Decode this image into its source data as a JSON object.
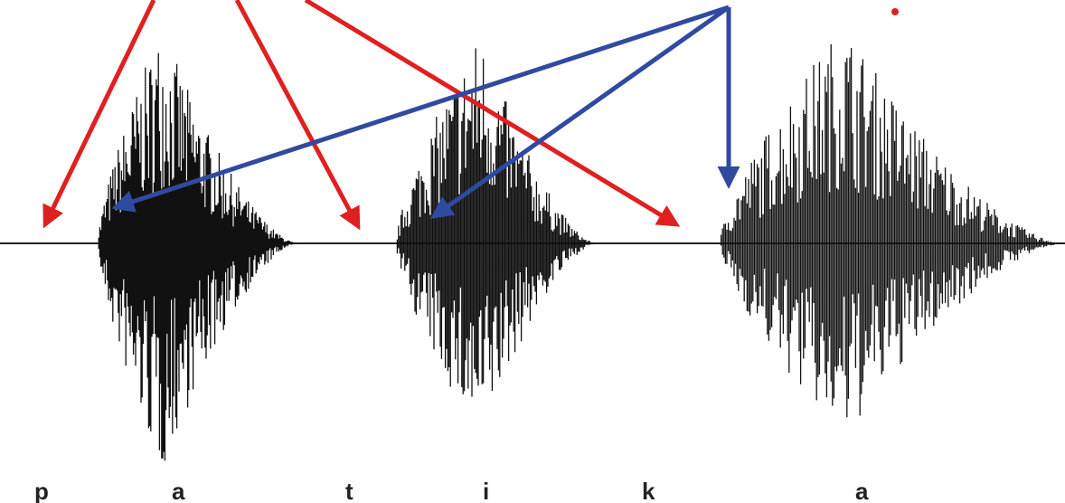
{
  "figure": {
    "colors": {
      "background": "#ffffff",
      "waveform": "#111111",
      "baseline": "#222222",
      "arrow_red": "#e02020",
      "arrow_blue": "#2f4aa0",
      "dot": "#e02020"
    },
    "segments": [
      {
        "id": "p1",
        "label": "p"
      },
      {
        "id": "a1",
        "label": "a"
      },
      {
        "id": "t",
        "label": "t"
      },
      {
        "id": "i",
        "label": "i"
      },
      {
        "id": "k",
        "label": "k"
      },
      {
        "id": "a2",
        "label": "a"
      }
    ]
  }
}
